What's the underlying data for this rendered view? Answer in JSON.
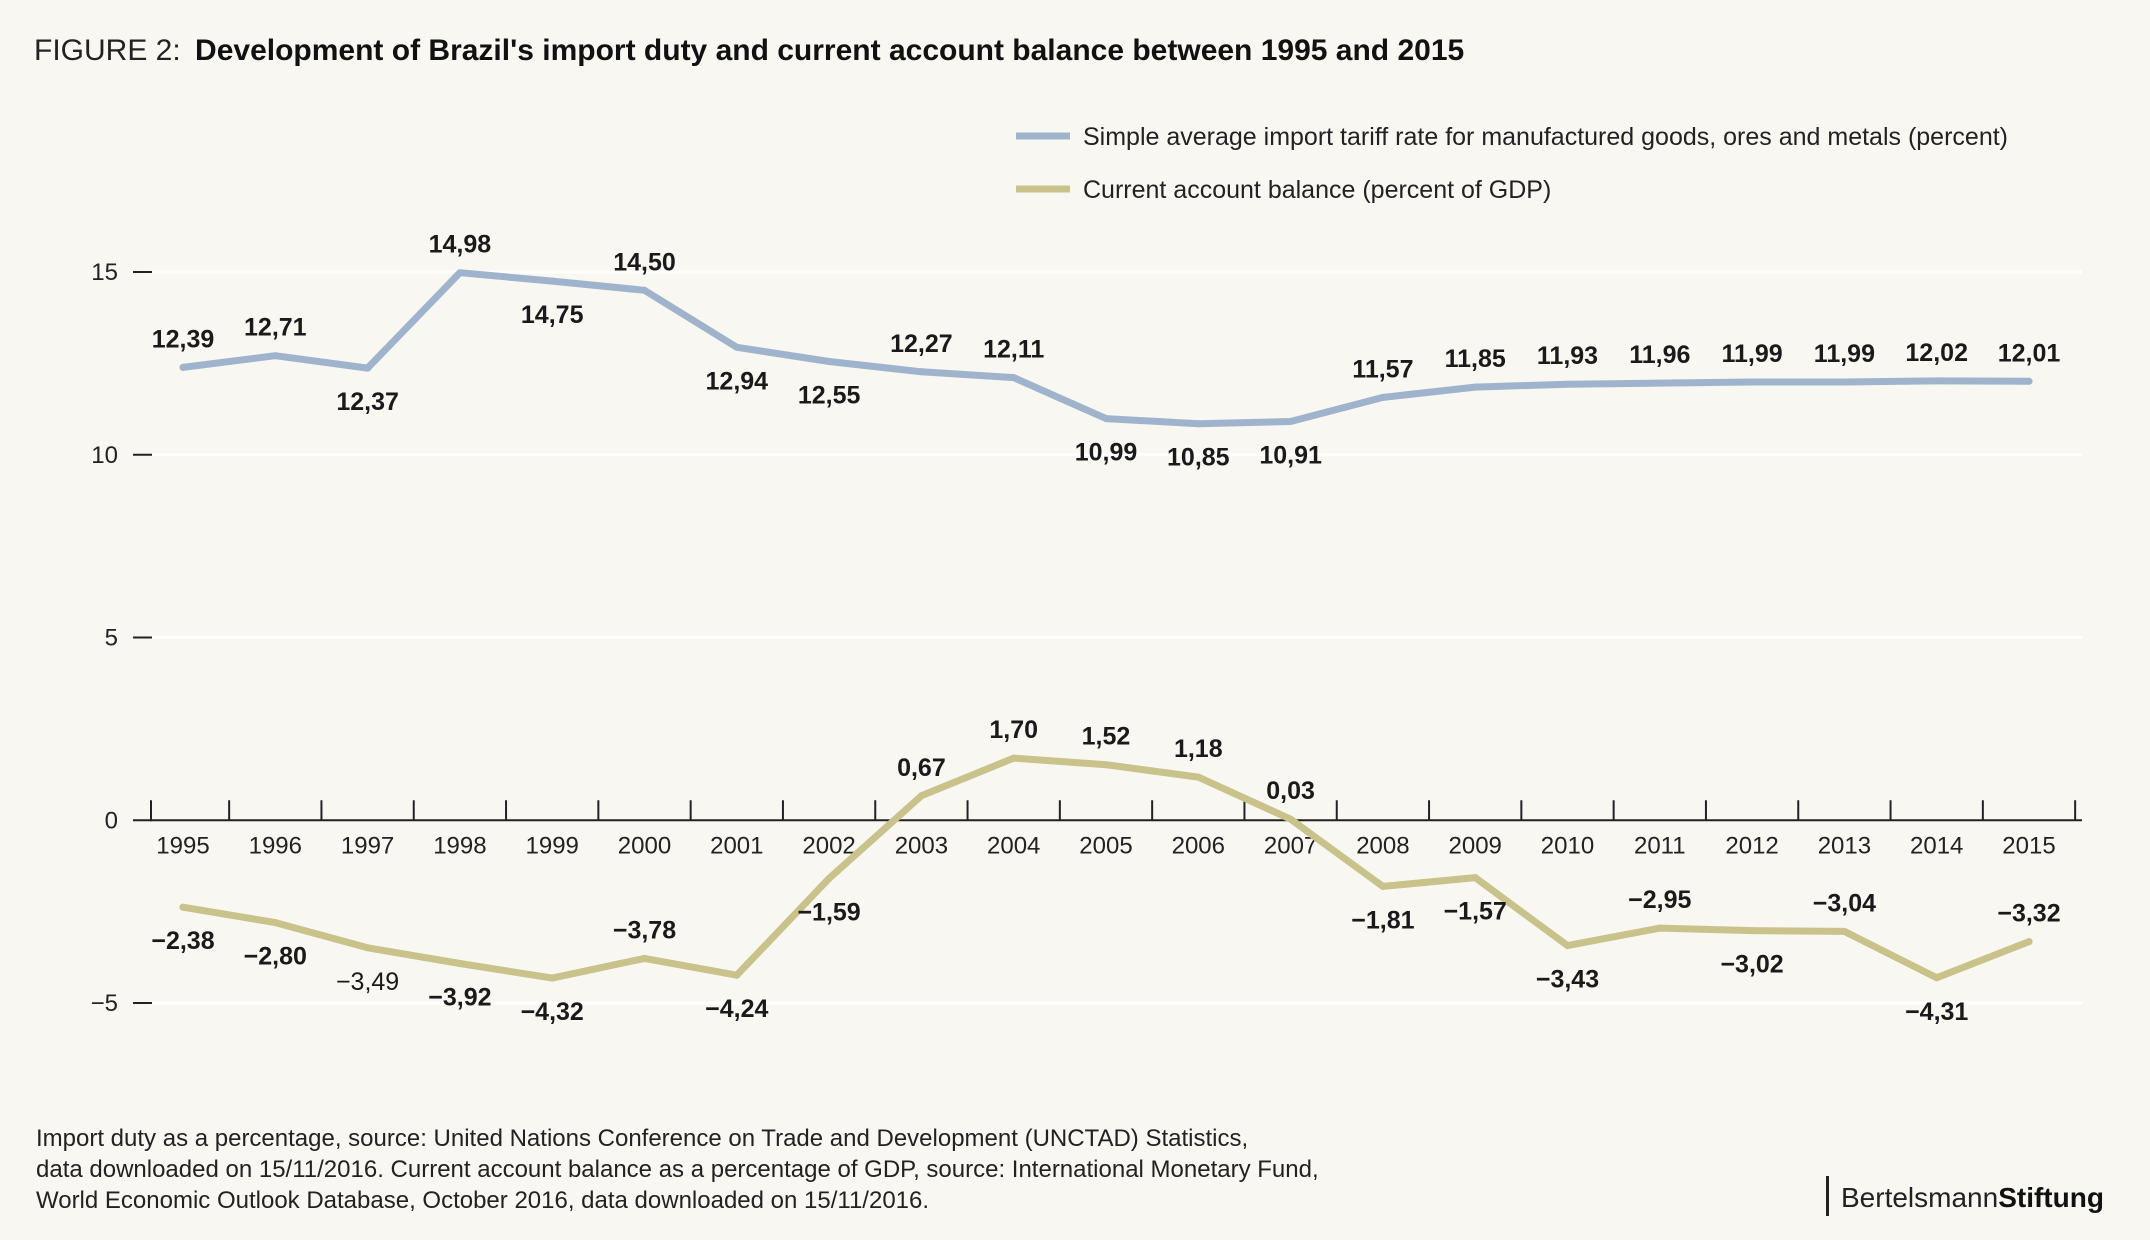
{
  "figure": {
    "label": "FIGURE 2:",
    "title": "Development of Brazil's import duty and current account balance between 1995 and 2015"
  },
  "source_lines": [
    "Import duty as a percentage, source: United Nations Conference on Trade and Development (UNCTAD) Statistics,",
    "data downloaded on 15/11/2016. Current account balance as a percentage of GDP, source: International Monetary Fund,",
    "World Economic Outlook Database, October 2016, data downloaded on 15/11/2016."
  ],
  "brand": {
    "part1": "Bertelsmann",
    "part2": "Stiftung"
  },
  "chart_data": {
    "type": "line",
    "title": "Development of Brazil's import duty and current account balance between 1995 and 2015",
    "xlabel": "",
    "ylabel": "",
    "x": [
      "1995",
      "1996",
      "1997",
      "1998",
      "1999",
      "2000",
      "2001",
      "2002",
      "2003",
      "2004",
      "2005",
      "2006",
      "2007",
      "2008",
      "2009",
      "2010",
      "2011",
      "2012",
      "2013",
      "2014",
      "2015"
    ],
    "ylim": [
      -5,
      15
    ],
    "yticks": [
      15,
      10,
      5,
      0,
      -5
    ],
    "ytick_labels": [
      "15",
      "10",
      "5",
      "0",
      "−5"
    ],
    "grid": true,
    "legend_position": "top-right",
    "series": [
      {
        "name": "Simple average import tariff rate for manufactured goods, ores and metals (percent)",
        "color": "#9fb4cc",
        "values": [
          12.39,
          12.71,
          12.37,
          14.98,
          14.75,
          14.5,
          12.94,
          12.55,
          12.27,
          12.11,
          10.99,
          10.85,
          10.91,
          11.57,
          11.85,
          11.93,
          11.96,
          11.99,
          11.99,
          12.02,
          12.01
        ],
        "labels": [
          "12,39",
          "12,71",
          "12,37",
          "14,98",
          "14,75",
          "14,50",
          "12,94",
          "12,55",
          "12,27",
          "12,11",
          "10,99",
          "10,85",
          "10,91",
          "11,57",
          "11,85",
          "11,93",
          "11,96",
          "11,99",
          "11,99",
          "12,02",
          "12,01"
        ],
        "label_side": [
          "above",
          "above",
          "below",
          "above",
          "below",
          "above",
          "below",
          "below",
          "above",
          "above",
          "below",
          "below",
          "below",
          "above",
          "above",
          "above",
          "above",
          "above",
          "above",
          "above",
          "above"
        ]
      },
      {
        "name": "Current account balance (percent of GDP)",
        "color": "#c9c28a",
        "values": [
          -2.38,
          -2.8,
          -3.49,
          -3.92,
          -4.32,
          -3.78,
          -4.24,
          -1.59,
          0.67,
          1.7,
          1.52,
          1.18,
          0.03,
          -1.81,
          -1.57,
          -3.43,
          -2.95,
          -3.02,
          -3.04,
          -4.31,
          -3.32
        ],
        "labels": [
          "−2,38",
          "−2,80",
          "−3,49",
          "−3,92",
          "−4,32",
          "−3,78",
          "−4,24",
          "−1,59",
          "0,67",
          "1,70",
          "1,52",
          "1,18",
          "0,03",
          "−1,81",
          "−1,57",
          "−3,43",
          "−2,95",
          "−3,02",
          "−3,04",
          "−4,31",
          "−3,32"
        ],
        "label_side": [
          "below",
          "below",
          "below",
          "below",
          "below",
          "above",
          "below",
          "below",
          "above",
          "above",
          "above",
          "above",
          "above",
          "below",
          "below",
          "below",
          "above",
          "below",
          "above",
          "below",
          "above"
        ]
      }
    ]
  }
}
